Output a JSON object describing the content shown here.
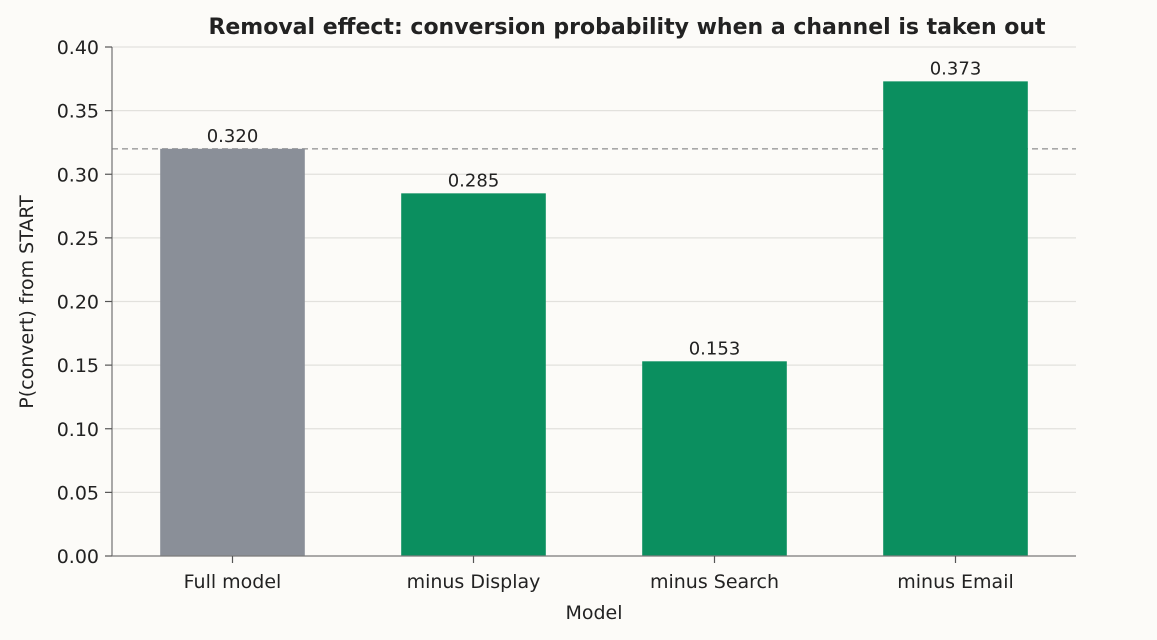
{
  "chart_data": {
    "type": "bar",
    "title": "Removal effect: conversion probability when a channel is taken out",
    "xlabel": "Model",
    "ylabel": "P(convert) from START",
    "categories": [
      "Full model",
      "minus Display",
      "minus Search",
      "minus Email"
    ],
    "values": [
      0.32,
      0.285,
      0.153,
      0.373
    ],
    "value_labels": [
      "0.320",
      "0.285",
      "0.153",
      "0.373"
    ],
    "bar_colors": [
      "#8a8f98",
      "#0b8f5f",
      "#0b8f5f",
      "#0b8f5f"
    ],
    "ylim": [
      0,
      0.4
    ],
    "yticks": [
      0.0,
      0.05,
      0.1,
      0.15,
      0.2,
      0.25,
      0.3,
      0.35,
      0.4
    ],
    "ytick_labels": [
      "0.00",
      "0.05",
      "0.10",
      "0.15",
      "0.20",
      "0.25",
      "0.30",
      "0.35",
      "0.40"
    ],
    "reference_line": 0.32,
    "grid": "horizontal",
    "legend": "none"
  }
}
